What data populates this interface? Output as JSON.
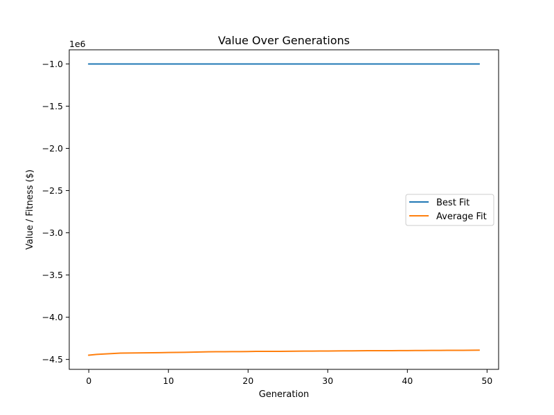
{
  "chart_data": {
    "type": "line",
    "title": "Value Over Generations",
    "xlabel": "Generation",
    "ylabel": "Value / Fitness ($)",
    "y_offset_label": "1e6",
    "xlim": [
      -2.45,
      51.45
    ],
    "ylim": [
      -4.6175,
      -0.8325
    ],
    "x_ticks": [
      0,
      10,
      20,
      30,
      40,
      50
    ],
    "x_tick_labels": [
      "0",
      "10",
      "20",
      "30",
      "40",
      "50"
    ],
    "y_ticks": [
      -1.0,
      -1.5,
      -2.0,
      -2.5,
      -3.0,
      -3.5,
      -4.0,
      -4.5
    ],
    "y_tick_labels": [
      "−1.0",
      "−1.5",
      "−2.0",
      "−2.5",
      "−3.0",
      "−3.5",
      "−4.0",
      "−4.5"
    ],
    "grid": false,
    "legend_position": "center-right",
    "x": [
      0,
      1,
      2,
      3,
      4,
      5,
      6,
      7,
      8,
      9,
      10,
      11,
      12,
      13,
      14,
      15,
      16,
      17,
      18,
      19,
      20,
      21,
      22,
      23,
      24,
      25,
      26,
      27,
      28,
      29,
      30,
      31,
      32,
      33,
      34,
      35,
      36,
      37,
      38,
      39,
      40,
      41,
      42,
      43,
      44,
      45,
      46,
      47,
      48,
      49
    ],
    "series": [
      {
        "name": "Best Fit",
        "color": "#1f77b4",
        "values": [
          -1.0,
          -1.0,
          -1.0,
          -1.0,
          -1.0,
          -1.0,
          -1.0,
          -1.0,
          -1.0,
          -1.0,
          -1.0,
          -1.0,
          -1.0,
          -1.0,
          -1.0,
          -1.0,
          -1.0,
          -1.0,
          -1.0,
          -1.0,
          -1.0,
          -1.0,
          -1.0,
          -1.0,
          -1.0,
          -1.0,
          -1.0,
          -1.0,
          -1.0,
          -1.0,
          -1.0,
          -1.0,
          -1.0,
          -1.0,
          -1.0,
          -1.0,
          -1.0,
          -1.0,
          -1.0,
          -1.0,
          -1.0,
          -1.0,
          -1.0,
          -1.0,
          -1.0,
          -1.0,
          -1.0,
          -1.0,
          -1.0,
          -1.0
        ]
      },
      {
        "name": "Average Fit",
        "color": "#ff7f0e",
        "values": [
          -4.45,
          -4.44,
          -4.435,
          -4.43,
          -4.425,
          -4.424,
          -4.423,
          -4.422,
          -4.421,
          -4.42,
          -4.418,
          -4.417,
          -4.416,
          -4.414,
          -4.412,
          -4.41,
          -4.409,
          -4.409,
          -4.408,
          -4.408,
          -4.407,
          -4.405,
          -4.405,
          -4.404,
          -4.404,
          -4.403,
          -4.402,
          -4.401,
          -4.401,
          -4.4,
          -4.4,
          -4.399,
          -4.398,
          -4.398,
          -4.397,
          -4.396,
          -4.396,
          -4.396,
          -4.396,
          -4.395,
          -4.395,
          -4.394,
          -4.394,
          -4.393,
          -4.393,
          -4.392,
          -4.392,
          -4.392,
          -4.391,
          -4.39
        ]
      }
    ]
  }
}
